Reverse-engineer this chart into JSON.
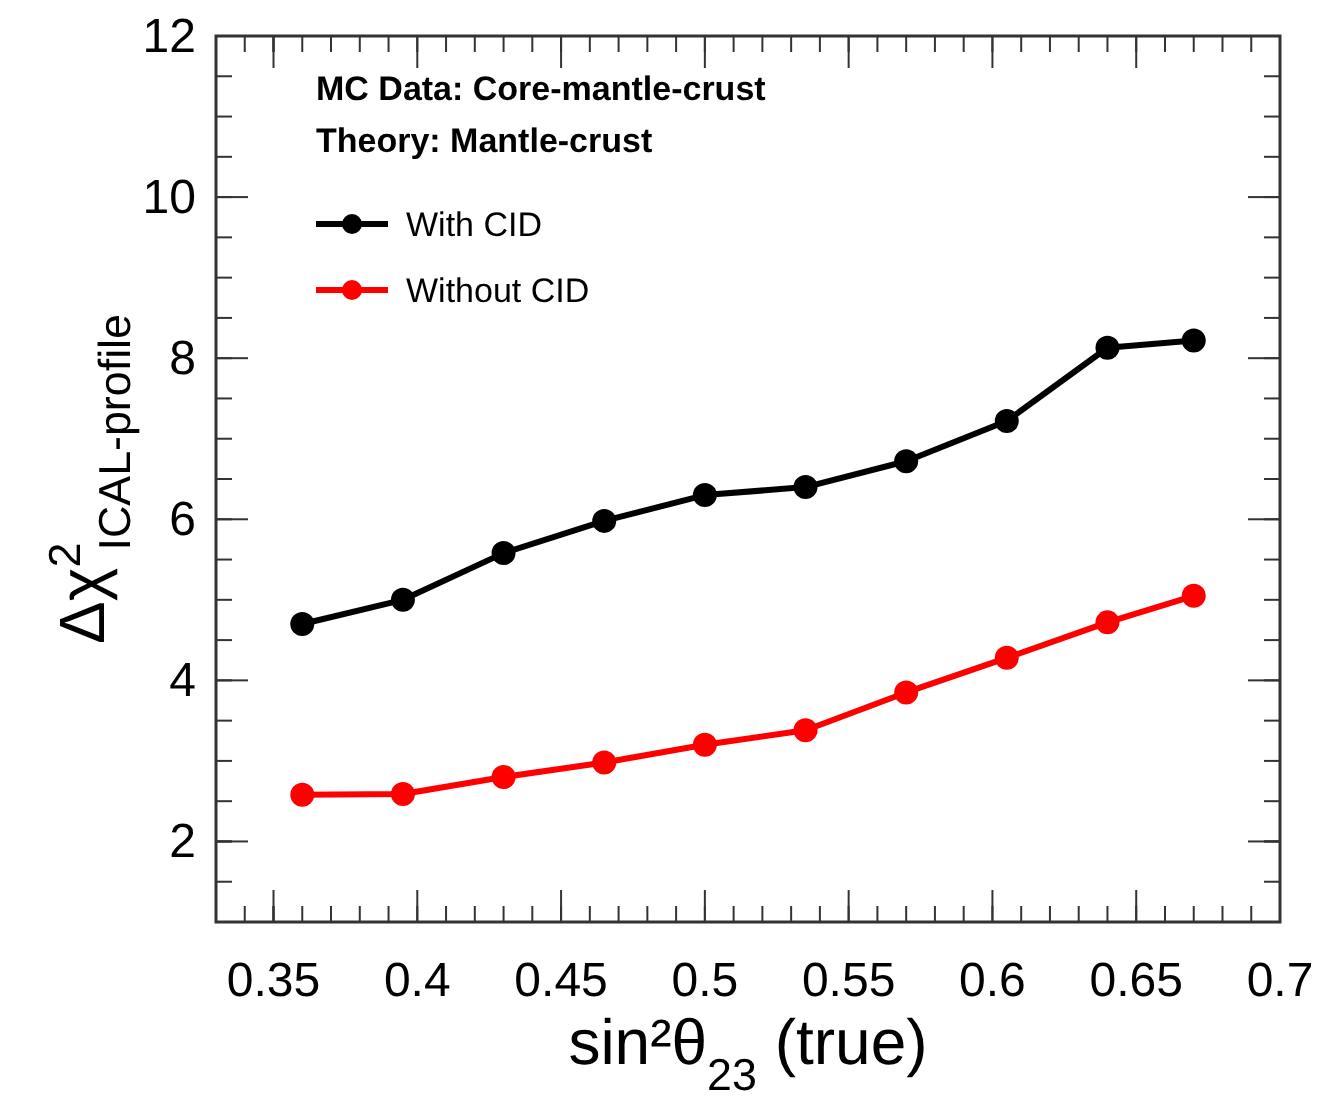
{
  "chart_data": {
    "type": "line",
    "xlabel": "sin²θ$_{23}$ (true)",
    "ylabel": "Δχ$^{2}$$_{ICAL-profile}$",
    "annotations": [
      "MC Data: Core-mantle-crust",
      "Theory: Mantle-crust"
    ],
    "x": [
      0.36,
      0.395,
      0.43,
      0.465,
      0.5,
      0.535,
      0.57,
      0.605,
      0.64,
      0.67
    ],
    "series": [
      {
        "name": "With CID",
        "color": "#000000",
        "values": [
          4.7,
          5.0,
          5.58,
          5.98,
          6.3,
          6.4,
          6.72,
          7.22,
          8.13,
          8.22
        ]
      },
      {
        "name": "Without CID",
        "color": "#ff0000",
        "values": [
          2.58,
          2.59,
          2.8,
          2.98,
          3.2,
          3.38,
          3.85,
          4.28,
          4.72,
          5.05
        ]
      }
    ],
    "xlim": [
      0.33,
      0.7
    ],
    "xticks": [
      0.35,
      0.4,
      0.45,
      0.5,
      0.55,
      0.6,
      0.65,
      0.7
    ],
    "ylim": [
      1,
      12
    ],
    "yticks": [
      2,
      4,
      6,
      8,
      10,
      12
    ],
    "grid": false,
    "legend": "top left",
    "marker": "circle",
    "line_style": "solid"
  }
}
